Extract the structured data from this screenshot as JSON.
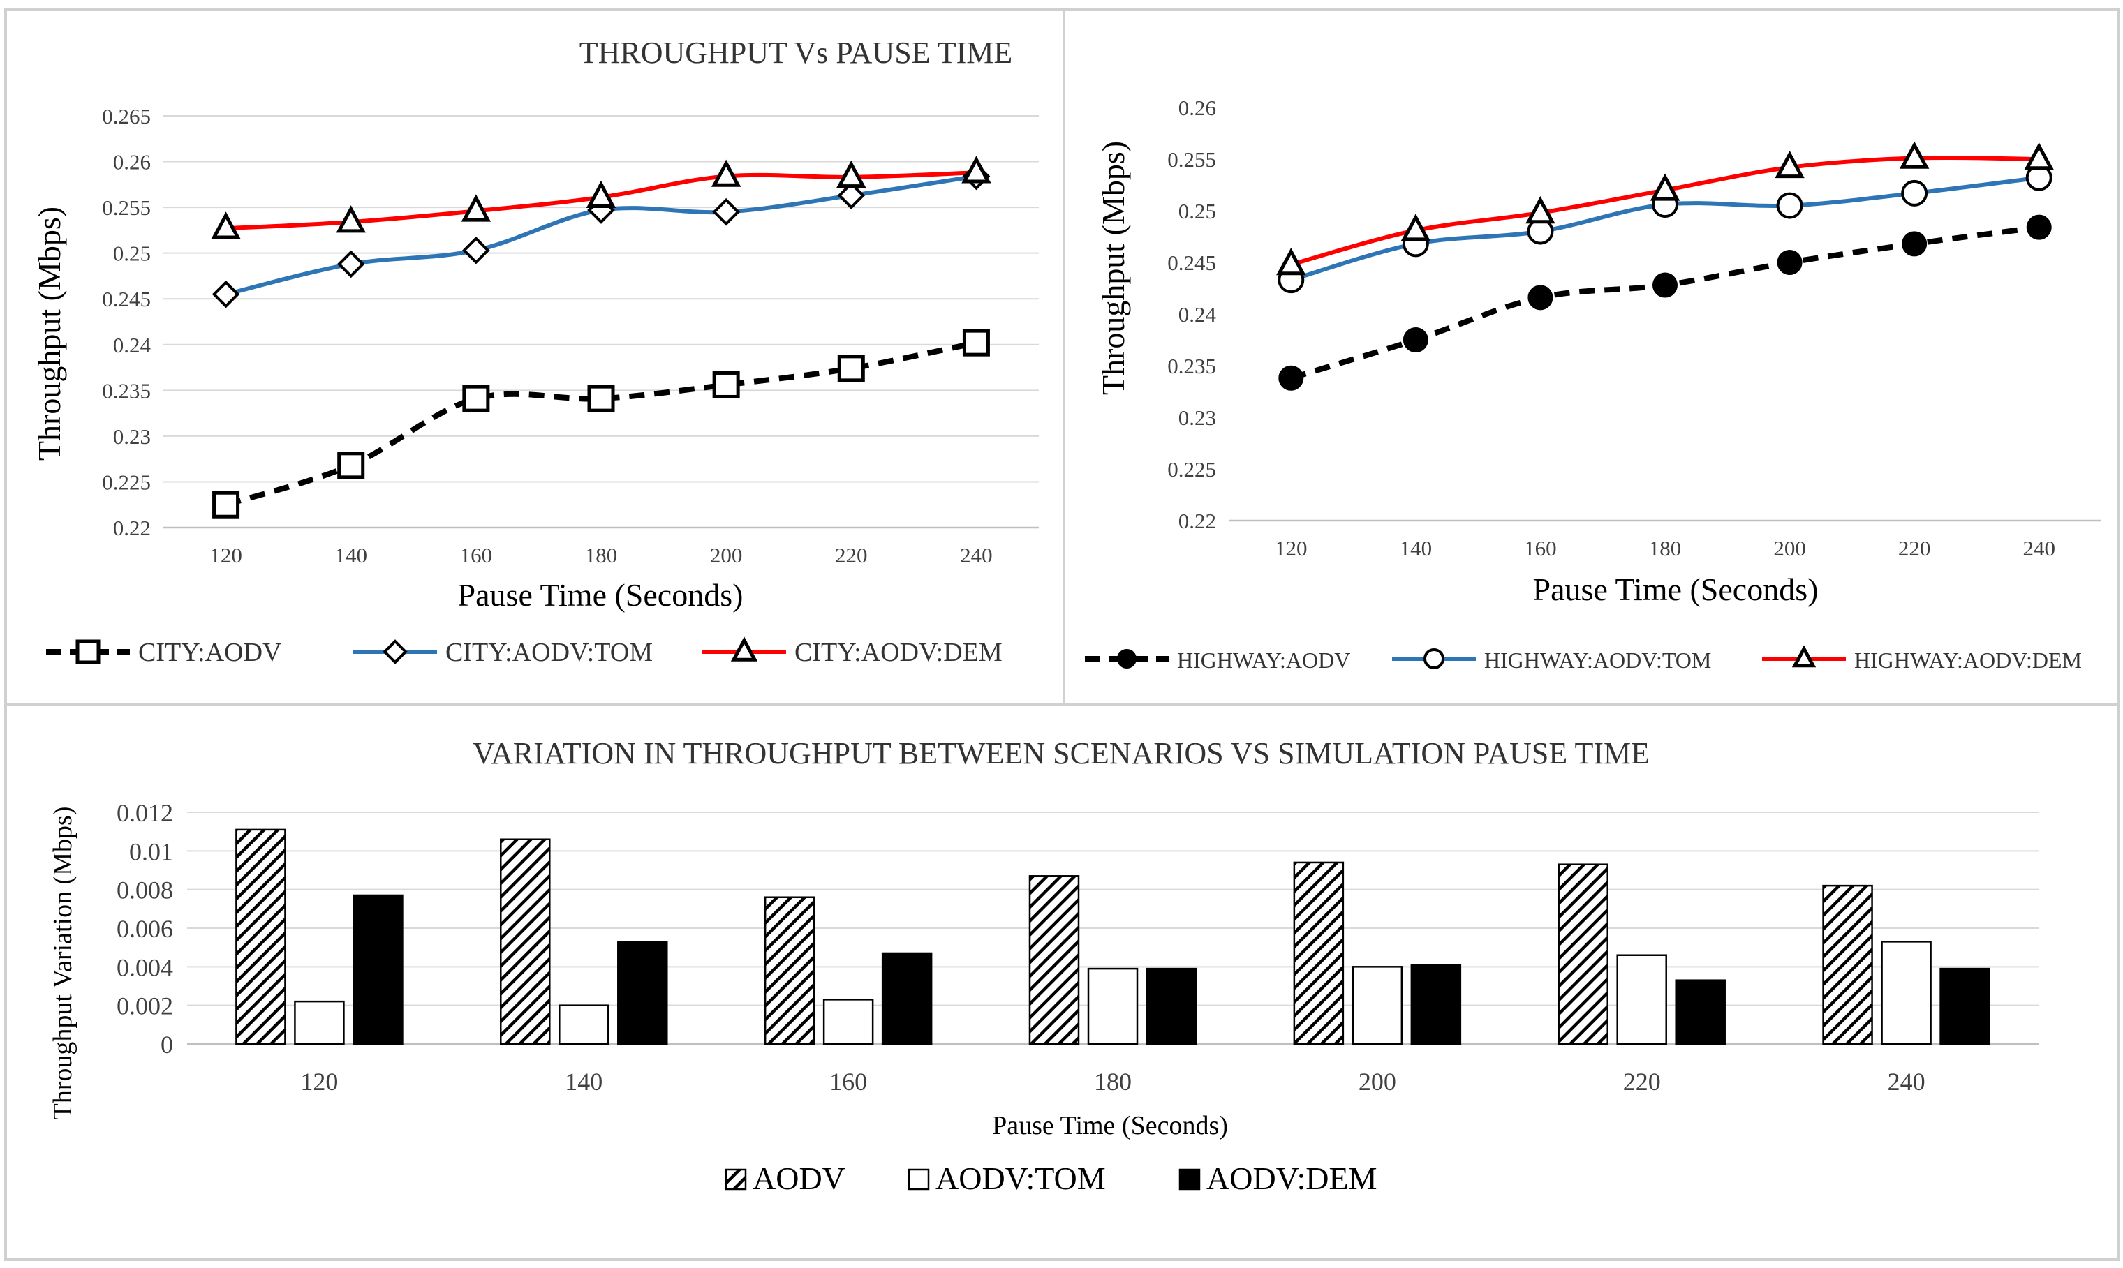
{
  "chart_data": [
    {
      "id": "city",
      "type": "line",
      "title": "THROUGHPUT  Vs PAUSE TIME",
      "xlabel": "Pause Time (Seconds)",
      "ylabel": "Throughput (Mbps)",
      "categories": [
        120,
        140,
        160,
        180,
        200,
        220,
        240
      ],
      "ylim": [
        0.22,
        0.265
      ],
      "yticks": [
        "0.22",
        "0.225",
        "0.23",
        "0.235",
        "0.24",
        "0.245",
        "0.25",
        "0.255",
        "0.26",
        "0.265"
      ],
      "legend_position": "bottom",
      "grid": true,
      "series": [
        {
          "name": "CITY:AODV",
          "color": "#000000",
          "dash": "dashed",
          "marker": "square",
          "values": [
            0.2225,
            0.2268,
            0.2341,
            0.2341,
            0.2356,
            0.2374,
            0.2402
          ]
        },
        {
          "name": "CITY:AODV:TOM",
          "color": "#2E75B6",
          "dash": "solid",
          "marker": "diamond",
          "values": [
            0.2455,
            0.2488,
            0.2503,
            0.2547,
            0.2545,
            0.2563,
            0.2584
          ]
        },
        {
          "name": "CITY:AODV:DEM",
          "color": "#FF0000",
          "dash": "solid",
          "marker": "triangle",
          "values": [
            0.2527,
            0.2534,
            0.2546,
            0.2561,
            0.2584,
            0.2583,
            0.2588
          ]
        }
      ]
    },
    {
      "id": "highway",
      "type": "line",
      "title": "",
      "xlabel": "Pause Time (Seconds)",
      "ylabel": "Throughput (Mbps)",
      "categories": [
        120,
        140,
        160,
        180,
        200,
        220,
        240
      ],
      "ylim": [
        0.22,
        0.26
      ],
      "yticks": [
        "0.22",
        "0.225",
        "0.23",
        "0.235",
        "0.24",
        "0.245",
        "0.25",
        "0.255",
        "0.26"
      ],
      "legend_position": "bottom",
      "grid": false,
      "series": [
        {
          "name": "HIGHWAY:AODV",
          "color": "#000000",
          "dash": "dashed",
          "marker": "circle-filled",
          "values": [
            0.2338,
            0.2375,
            0.2416,
            0.2428,
            0.245,
            0.2468,
            0.2484
          ]
        },
        {
          "name": "HIGHWAY:AODV:TOM",
          "color": "#2E75B6",
          "dash": "solid",
          "marker": "circle",
          "values": [
            0.2433,
            0.2468,
            0.248,
            0.2506,
            0.2505,
            0.2517,
            0.2532
          ]
        },
        {
          "name": "HIGHWAY:AODV:DEM",
          "color": "#FF0000",
          "dash": "solid",
          "marker": "triangle",
          "values": [
            0.2448,
            0.2481,
            0.2498,
            0.252,
            0.2542,
            0.2551,
            0.255
          ]
        }
      ]
    },
    {
      "id": "variation",
      "type": "bar",
      "title": "VARIATION IN THROUGHPUT  BETWEEN SCENARIOS VS SIMULATION PAUSE TIME",
      "xlabel": "Pause Time (Seconds)",
      "ylabel": "Throughput Variation (Mbps)",
      "categories": [
        120,
        140,
        160,
        180,
        200,
        220,
        240
      ],
      "ylim": [
        0,
        0.012
      ],
      "yticks": [
        "0",
        "0.002",
        "0.004",
        "0.006",
        "0.008",
        "0.01",
        "0.012"
      ],
      "legend_position": "bottom",
      "grid": true,
      "series": [
        {
          "name": "AODV",
          "fill": "hatched",
          "values": [
            0.0111,
            0.0106,
            0.0076,
            0.0087,
            0.0094,
            0.0093,
            0.0082
          ]
        },
        {
          "name": "AODV:TOM",
          "fill": "#ffffff",
          "values": [
            0.0022,
            0.002,
            0.0023,
            0.0039,
            0.004,
            0.0046,
            0.0053
          ]
        },
        {
          "name": "AODV:DEM",
          "fill": "#000000",
          "values": [
            0.0077,
            0.0053,
            0.0047,
            0.0039,
            0.0041,
            0.0033,
            0.0039
          ]
        }
      ]
    }
  ]
}
